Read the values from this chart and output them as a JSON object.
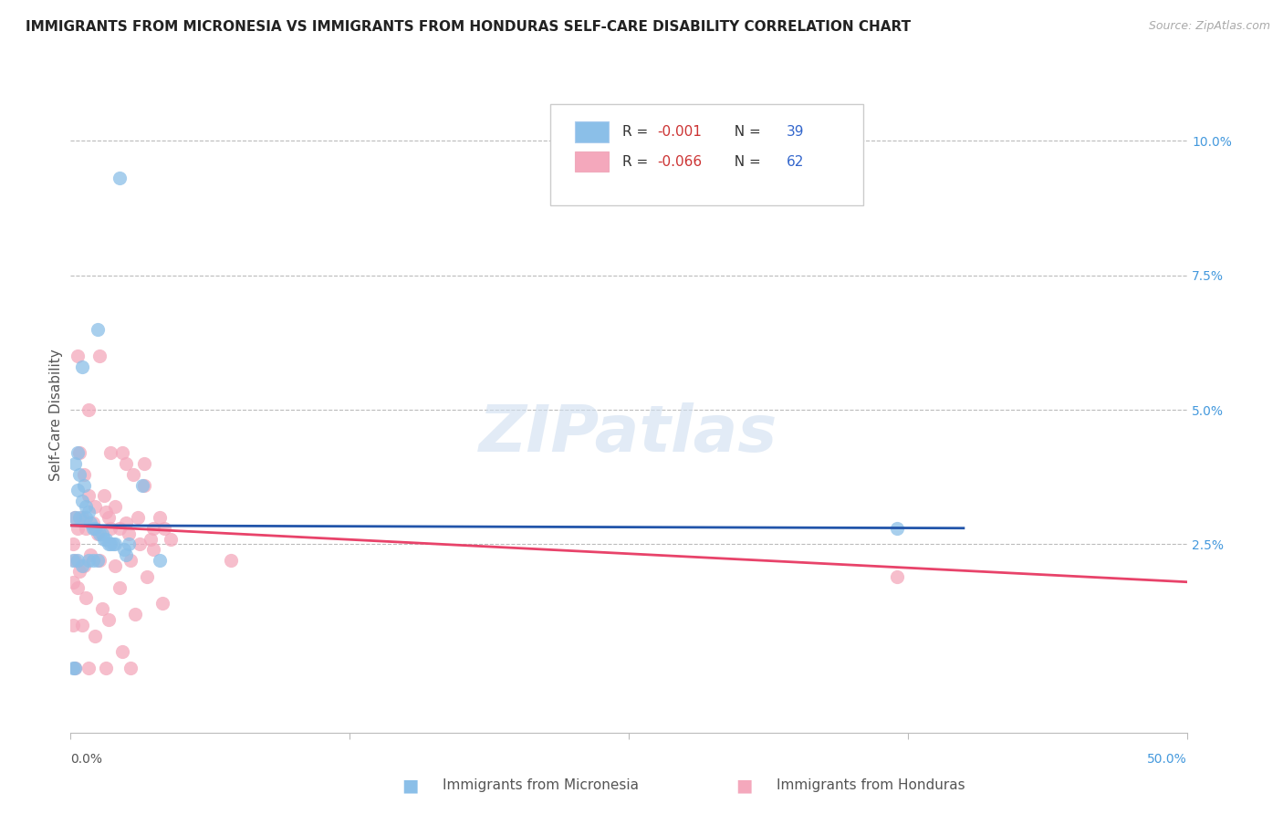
{
  "title": "IMMIGRANTS FROM MICRONESIA VS IMMIGRANTS FROM HONDURAS SELF-CARE DISABILITY CORRELATION CHART",
  "source": "Source: ZipAtlas.com",
  "ylabel": "Self-Care Disability",
  "right_yticks": [
    "10.0%",
    "7.5%",
    "5.0%",
    "2.5%"
  ],
  "right_ytick_vals": [
    0.1,
    0.075,
    0.05,
    0.025
  ],
  "xlim": [
    0.0,
    0.5
  ],
  "ylim": [
    -0.01,
    0.108
  ],
  "watermark": "ZIPatlas",
  "blue_color": "#8bbfe8",
  "pink_color": "#f4a8bc",
  "trendline_blue": "#2255aa",
  "trendline_pink": "#e8436a",
  "blue_r": "-0.001",
  "blue_n": "39",
  "pink_r": "-0.066",
  "pink_n": "62",
  "label_blue": "Immigrants from Micronesia",
  "label_pink": "Immigrants from Honduras",
  "blue_trendline_x": [
    0.0,
    0.4
  ],
  "blue_trendline_y": [
    0.0285,
    0.028
  ],
  "pink_trendline_x": [
    0.0,
    0.5
  ],
  "pink_trendline_y": [
    0.0285,
    0.018
  ],
  "blue_scatter_x": [
    0.022,
    0.005,
    0.012,
    0.003,
    0.002,
    0.004,
    0.006,
    0.003,
    0.005,
    0.007,
    0.008,
    0.002,
    0.004,
    0.007,
    0.009,
    0.01,
    0.011,
    0.013,
    0.014,
    0.015,
    0.016,
    0.018,
    0.019,
    0.02,
    0.024,
    0.026,
    0.001,
    0.003,
    0.005,
    0.008,
    0.01,
    0.012,
    0.017,
    0.025,
    0.032,
    0.04,
    0.001,
    0.002,
    0.37
  ],
  "blue_scatter_y": [
    0.093,
    0.058,
    0.065,
    0.042,
    0.04,
    0.038,
    0.036,
    0.035,
    0.033,
    0.032,
    0.031,
    0.03,
    0.03,
    0.03,
    0.029,
    0.028,
    0.028,
    0.027,
    0.027,
    0.026,
    0.026,
    0.025,
    0.025,
    0.025,
    0.024,
    0.025,
    0.022,
    0.022,
    0.021,
    0.022,
    0.022,
    0.022,
    0.025,
    0.023,
    0.036,
    0.022,
    0.002,
    0.002,
    0.028
  ],
  "pink_scatter_x": [
    0.003,
    0.008,
    0.013,
    0.018,
    0.023,
    0.025,
    0.028,
    0.033,
    0.037,
    0.042,
    0.004,
    0.006,
    0.008,
    0.011,
    0.015,
    0.017,
    0.02,
    0.025,
    0.03,
    0.036,
    0.04,
    0.002,
    0.003,
    0.005,
    0.007,
    0.01,
    0.012,
    0.016,
    0.018,
    0.022,
    0.026,
    0.031,
    0.037,
    0.001,
    0.002,
    0.004,
    0.006,
    0.009,
    0.013,
    0.02,
    0.027,
    0.034,
    0.041,
    0.001,
    0.003,
    0.007,
    0.014,
    0.022,
    0.029,
    0.001,
    0.005,
    0.011,
    0.017,
    0.023,
    0.033,
    0.045,
    0.072,
    0.37,
    0.002,
    0.008,
    0.016,
    0.027
  ],
  "pink_scatter_y": [
    0.06,
    0.05,
    0.06,
    0.042,
    0.042,
    0.04,
    0.038,
    0.036,
    0.028,
    0.028,
    0.042,
    0.038,
    0.034,
    0.032,
    0.034,
    0.03,
    0.032,
    0.029,
    0.03,
    0.026,
    0.03,
    0.03,
    0.028,
    0.03,
    0.028,
    0.029,
    0.027,
    0.031,
    0.028,
    0.028,
    0.027,
    0.025,
    0.024,
    0.025,
    0.022,
    0.02,
    0.021,
    0.023,
    0.022,
    0.021,
    0.022,
    0.019,
    0.014,
    0.018,
    0.017,
    0.015,
    0.013,
    0.017,
    0.012,
    0.01,
    0.01,
    0.008,
    0.011,
    0.005,
    0.04,
    0.026,
    0.022,
    0.019,
    0.002,
    0.002,
    0.002,
    0.002
  ]
}
